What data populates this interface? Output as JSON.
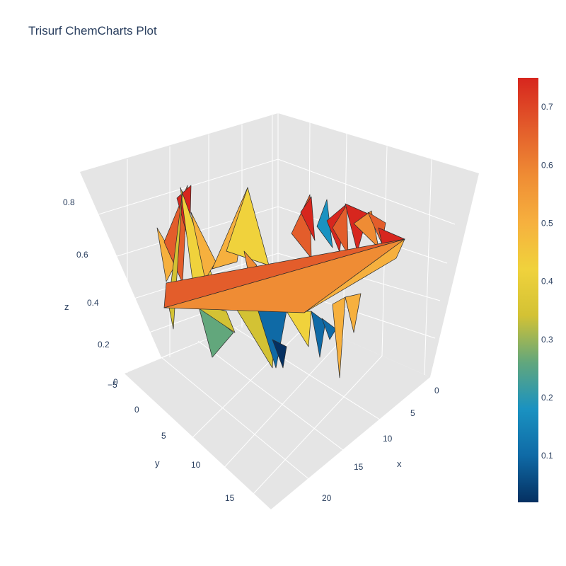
{
  "chart_data": {
    "type": "trisurf",
    "title": "Trisurf ChemCharts Plot",
    "xlabel": "x",
    "ylabel": "y",
    "zlabel": "z",
    "x_ticks": [
      "0",
      "5",
      "10",
      "15",
      "20"
    ],
    "y_ticks": [
      "−5",
      "0",
      "5",
      "10",
      "15"
    ],
    "z_ticks": [
      "0",
      "0.2",
      "0.4",
      "0.6",
      "0.8"
    ],
    "colorbar_ticks": [
      "0.1",
      "0.2",
      "0.3",
      "0.4",
      "0.5",
      "0.6",
      "0.7"
    ],
    "colorbar_range": [
      0.02,
      0.75
    ],
    "colorscale": [
      "#053061",
      "#0f6aa6",
      "#1a92c1",
      "#62a77c",
      "#d3c234",
      "#f0d23c",
      "#f6b03e",
      "#ef8c34",
      "#e35d2b",
      "#d7261e"
    ],
    "background": "#e5e5e5",
    "grid_color": "#ffffff",
    "edge_color": "#2b2b2b"
  }
}
